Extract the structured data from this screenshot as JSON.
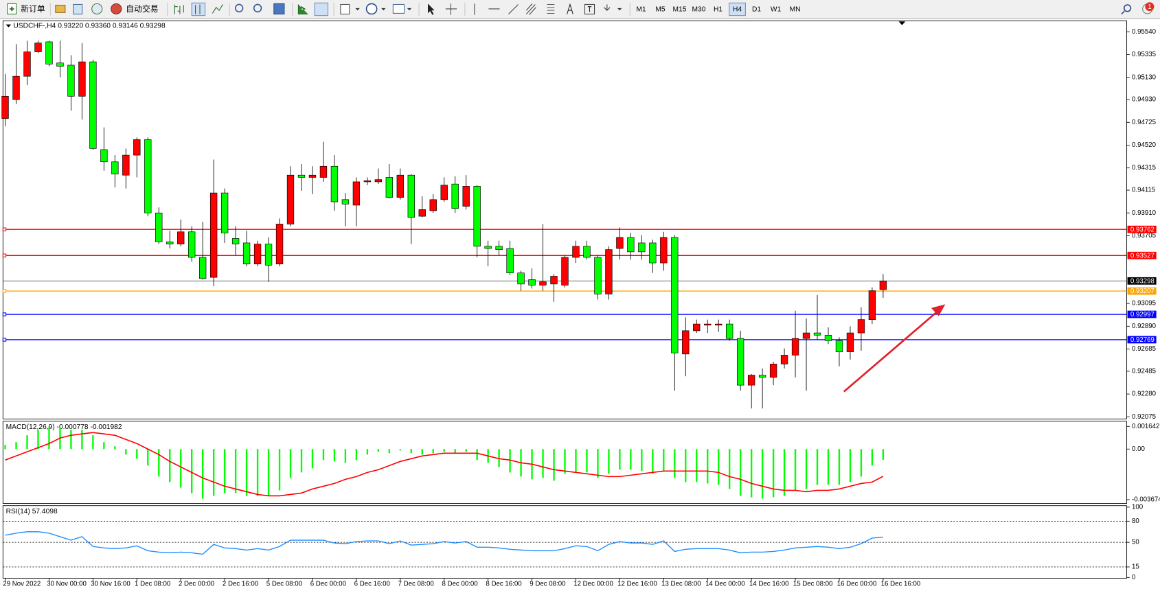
{
  "toolbar": {
    "buttons": [
      "新订单",
      "自动交易"
    ],
    "timeframes": [
      "M1",
      "M5",
      "M15",
      "M30",
      "H1",
      "H4",
      "D1",
      "W1",
      "MN"
    ],
    "active_timeframe": 5,
    "notifications": 1
  },
  "chart_data": [
    {
      "type": "candlestick",
      "title": "USDCHF-,H4  0.93220 0.93360 0.93146 0.93298",
      "categories": [
        "29 Nov 2022",
        null,
        null,
        null,
        "30 Nov 00:00",
        null,
        null,
        null,
        "30 Nov 16:00",
        null,
        null,
        null,
        "1 Dec 08:00",
        null,
        null,
        null,
        "2 Dec 00:00",
        null,
        null,
        null,
        "2 Dec 16:00",
        null,
        null,
        null,
        "5 Dec 08:00",
        null,
        null,
        null,
        "6 Dec 00:00",
        null,
        null,
        null,
        "6 Dec 16:00",
        null,
        null,
        null,
        "7 Dec 08:00",
        null,
        null,
        null,
        "8 Dec 00:00",
        null,
        null,
        null,
        "8 Dec 16:00",
        null,
        null,
        null,
        "9 Dec 08:00",
        null,
        null,
        null,
        "12 Dec 00:00",
        null,
        null,
        null,
        "12 Dec 16:00",
        null,
        null,
        null,
        "13 Dec 08:00",
        null,
        null,
        null,
        "14 Dec 00:00",
        null,
        null,
        null,
        "14 Dec 16:00",
        null,
        null,
        null,
        "15 Dec 08:00",
        null,
        null,
        null,
        "16 Dec 00:00",
        null,
        null,
        null,
        "16 Dec 16:00"
      ],
      "open": [
        0.9476,
        0.9493,
        0.9514,
        0.9536,
        0.9545,
        0.9526,
        0.9524,
        0.9496,
        0.9527,
        0.9448,
        0.9437,
        0.9425,
        0.9443,
        0.9457,
        0.9391,
        0.9365,
        0.9363,
        0.9374,
        0.9351,
        0.9333,
        0.9409,
        0.9368,
        0.9364,
        0.9345,
        0.9363,
        0.9345,
        0.9381,
        0.9425,
        0.9423,
        0.9423,
        0.9433,
        0.9403,
        0.9398,
        0.9419,
        0.9419,
        0.9423,
        0.9405,
        0.9425,
        0.9388,
        0.9393,
        0.9403,
        0.9417,
        0.9397,
        0.9415,
        0.9361,
        0.9361,
        0.9359,
        0.9337,
        0.9331,
        0.9326,
        0.9327,
        0.9326,
        0.9351,
        0.9361,
        0.9351,
        0.9318,
        0.9359,
        0.9369,
        0.9364,
        0.9364,
        0.9346,
        0.9369,
        0.9264,
        0.9285,
        0.929,
        0.929,
        0.9291,
        0.9278,
        0.9236,
        0.9245,
        0.9243,
        0.9255,
        0.9263,
        0.9278,
        0.9283,
        0.9281,
        0.9276,
        0.9266,
        0.9283,
        0.9295,
        0.9322
      ],
      "high": [
        0.9516,
        0.9543,
        0.9546,
        0.9546,
        0.9546,
        0.9546,
        0.9533,
        0.9544,
        0.9529,
        0.9468,
        0.9443,
        0.9449,
        0.9459,
        0.9459,
        0.9396,
        0.9375,
        0.9385,
        0.9379,
        0.9383,
        0.9439,
        0.9413,
        0.9379,
        0.9375,
        0.9366,
        0.9369,
        0.9386,
        0.9433,
        0.9435,
        0.9433,
        0.9455,
        0.9443,
        0.9409,
        0.9423,
        0.9423,
        0.9431,
        0.9435,
        0.9431,
        0.9426,
        0.9406,
        0.9408,
        0.9423,
        0.9424,
        0.9425,
        0.9416,
        0.9366,
        0.9366,
        0.9366,
        0.9339,
        0.9341,
        0.9381,
        0.9336,
        0.9353,
        0.9366,
        0.9366,
        0.9353,
        0.9361,
        0.9378,
        0.9373,
        0.9371,
        0.9367,
        0.9374,
        0.9371,
        0.9297,
        0.9295,
        0.9295,
        0.9295,
        0.9295,
        0.9285,
        0.9246,
        0.9251,
        0.9257,
        0.9269,
        0.9303,
        0.9296,
        0.9317,
        0.9288,
        0.9279,
        0.9289,
        0.9306,
        0.9324,
        0.9336
      ],
      "low": [
        0.9469,
        0.9489,
        0.9506,
        0.9535,
        0.9523,
        0.9513,
        0.9483,
        0.9475,
        0.9448,
        0.9429,
        0.9414,
        0.9413,
        0.9423,
        0.9388,
        0.9363,
        0.9359,
        0.9361,
        0.9347,
        0.9331,
        0.9325,
        0.9364,
        0.9353,
        0.9343,
        0.9343,
        0.9329,
        0.9343,
        0.9379,
        0.9411,
        0.9408,
        0.9419,
        0.9393,
        0.9379,
        0.9379,
        0.9416,
        0.9417,
        0.9404,
        0.9403,
        0.9363,
        0.9387,
        0.9391,
        0.9401,
        0.9391,
        0.9394,
        0.9351,
        0.9343,
        0.9353,
        0.9335,
        0.9321,
        0.9323,
        0.9321,
        0.9311,
        0.9324,
        0.9346,
        0.9349,
        0.9313,
        0.9313,
        0.9349,
        0.9349,
        0.9349,
        0.9337,
        0.9339,
        0.9231,
        0.9244,
        0.9283,
        0.9283,
        0.9284,
        0.9276,
        0.9231,
        0.9215,
        0.9215,
        0.9236,
        0.9251,
        0.9243,
        0.9231,
        0.9277,
        0.9273,
        0.9253,
        0.9259,
        0.9267,
        0.9291,
        0.93146
      ],
      "close": [
        0.9496,
        0.9514,
        0.9536,
        0.9544,
        0.9525,
        0.9523,
        0.9496,
        0.9527,
        0.9449,
        0.9437,
        0.9426,
        0.9443,
        0.9457,
        0.9391,
        0.9365,
        0.9363,
        0.9374,
        0.9351,
        0.9332,
        0.9409,
        0.9373,
        0.9363,
        0.9345,
        0.9363,
        0.9344,
        0.9381,
        0.9425,
        0.9423,
        0.9425,
        0.9433,
        0.9401,
        0.9399,
        0.9419,
        0.942,
        0.9421,
        0.9405,
        0.9425,
        0.9387,
        0.9394,
        0.9403,
        0.9416,
        0.9395,
        0.9415,
        0.9361,
        0.9359,
        0.9358,
        0.9337,
        0.9327,
        0.9326,
        0.9329,
        0.9334,
        0.9351,
        0.9361,
        0.9351,
        0.9318,
        0.9358,
        0.9369,
        0.9356,
        0.9356,
        0.9346,
        0.9369,
        0.9265,
        0.9285,
        0.9291,
        0.9291,
        0.9291,
        0.9278,
        0.9236,
        0.9245,
        0.9243,
        0.9255,
        0.9263,
        0.9278,
        0.9283,
        0.9281,
        0.9276,
        0.9266,
        0.9283,
        0.9295,
        0.9321,
        0.93298
      ],
      "up_color": "#ff0000",
      "down_color": "#00ff00",
      "ylim": [
        0.92055,
        0.9564
      ],
      "yticks": [
        {
          "value": 0.9554,
          "label": "0.95540"
        },
        0.95335,
        {
          "value": 0.9513,
          "label": "0.95130"
        },
        {
          "value": 0.9493,
          "label": "0.94930"
        },
        0.94725,
        {
          "value": 0.9452,
          "label": "0.94520"
        },
        0.94315,
        0.94115,
        {
          "value": 0.9391,
          "label": "0.93910"
        },
        0.93705,
        0.93095,
        {
          "value": 0.9289,
          "label": "0.92890"
        },
        0.92685,
        0.92485,
        {
          "value": 0.9228,
          "label": "0.92280"
        },
        0.92075
      ],
      "levels": [
        {
          "value": 0.93762,
          "color": "#ff0000"
        },
        {
          "value": 0.93527,
          "color": "#ff0000"
        },
        {
          "value": 0.93207,
          "color": "#ffa500"
        },
        {
          "value": 0.92997,
          "color": "#0000ff"
        },
        {
          "value": 0.92769,
          "color": "#0000ff"
        }
      ],
      "last_price": 0.93298
    },
    {
      "type": "macd",
      "title": "MACD(12,26,9) -0.000778 -0.001982",
      "ylim": [
        -0.00395,
        0.00202
      ],
      "yticks": [
        0.001642,
        {
          "value": 0,
          "label": "0.00"
        },
        -0.003674
      ],
      "histogram": {
        "color": "#00ff00",
        "values": [
          0.0003,
          0.0005,
          0.001,
          0.0014,
          0.0016,
          0.0016,
          0.0014,
          0.0014,
          0.001,
          0.0005,
          0.0002,
          -0.0004,
          -0.0007,
          -0.0012,
          -0.002,
          -0.0024,
          -0.0028,
          -0.0032,
          -0.0036,
          -0.0034,
          -0.0032,
          -0.0032,
          -0.0034,
          -0.0034,
          -0.0034,
          -0.003,
          -0.0021,
          -0.0017,
          -0.0014,
          -0.0008,
          -0.0009,
          -0.001,
          -0.0008,
          -0.0004,
          -0.0002,
          -0.0003,
          -0.0001,
          -0.0003,
          -0.0004,
          -0.0003,
          -0.0002,
          -0.0003,
          -0.0002,
          -0.0008,
          -0.001,
          -0.0013,
          -0.0017,
          -0.002,
          -0.0022,
          -0.0021,
          -0.0023,
          -0.0018,
          -0.0017,
          -0.0017,
          -0.0021,
          -0.0018,
          -0.0015,
          -0.0015,
          -0.0016,
          -0.0018,
          -0.0016,
          -0.0021,
          -0.0024,
          -0.0024,
          -0.0025,
          -0.0026,
          -0.0029,
          -0.0034,
          -0.0035,
          -0.0036,
          -0.0035,
          -0.0034,
          -0.003,
          -0.0029,
          -0.0026,
          -0.0026,
          -0.0026,
          -0.0024,
          -0.002,
          -0.0012,
          -0.000778
        ]
      },
      "signal": {
        "color": "#ff0000",
        "values": [
          -0.0008,
          -0.0005,
          -0.0002,
          0.0001,
          0.0004,
          0.0008,
          0.001,
          0.0011,
          0.0012,
          0.0011,
          0.001,
          0.0007,
          0.0004,
          0,
          -0.0004,
          -0.0009,
          -0.0013,
          -0.0017,
          -0.0021,
          -0.0024,
          -0.0027,
          -0.0029,
          -0.0031,
          -0.0033,
          -0.0034,
          -0.0034,
          -0.0033,
          -0.0032,
          -0.0029,
          -0.0027,
          -0.0025,
          -0.0022,
          -0.002,
          -0.0017,
          -0.0015,
          -0.0012,
          -0.0009,
          -0.0007,
          -0.0005,
          -0.0004,
          -0.0003,
          -0.0003,
          -0.0003,
          -0.0003,
          -0.0005,
          -0.0007,
          -0.0008,
          -0.001,
          -0.0011,
          -0.0013,
          -0.0015,
          -0.0016,
          -0.0017,
          -0.0018,
          -0.0019,
          -0.002,
          -0.002,
          -0.0019,
          -0.0018,
          -0.0017,
          -0.0016,
          -0.0016,
          -0.0016,
          -0.0016,
          -0.0016,
          -0.0017,
          -0.002,
          -0.0022,
          -0.0025,
          -0.0027,
          -0.0029,
          -0.003,
          -0.003,
          -0.0031,
          -0.003,
          -0.003,
          -0.0029,
          -0.0027,
          -0.0025,
          -0.0024,
          -0.001982
        ]
      }
    },
    {
      "type": "rsi",
      "title": "RSI(14) 57.4098",
      "ylim": [
        0,
        100
      ],
      "yticks": [
        100,
        80,
        50,
        15,
        0
      ],
      "levels": [
        80,
        50,
        15
      ],
      "color": "#1e90ff",
      "values": [
        60,
        63,
        65,
        65,
        63,
        58,
        53,
        58,
        44,
        42,
        41,
        42,
        45,
        38,
        36,
        35,
        36,
        35,
        33,
        47,
        42,
        41,
        39,
        41,
        39,
        44,
        53,
        53,
        53,
        53,
        49,
        48,
        51,
        52,
        52,
        48,
        52,
        46,
        47,
        48,
        51,
        49,
        51,
        43,
        43,
        42,
        40,
        39,
        38,
        38,
        38,
        41,
        45,
        44,
        38,
        47,
        51,
        49,
        49,
        47,
        52,
        37,
        40,
        41,
        41,
        41,
        39,
        35,
        36,
        36,
        37,
        39,
        42,
        43,
        44,
        43,
        41,
        43,
        48,
        56,
        57.4098
      ]
    }
  ]
}
